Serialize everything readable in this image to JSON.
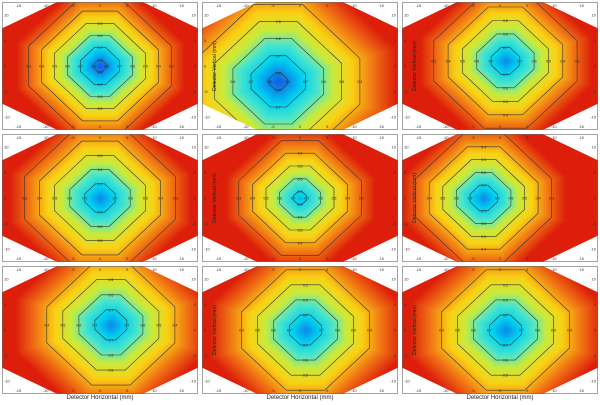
{
  "common": {
    "xlabel": "Detector Horizontal (mm)",
    "ylabel": "Detector Vertical (mm)",
    "xticks": [
      -15,
      -10,
      -5,
      0,
      5,
      10,
      15
    ],
    "yticks": [
      -10,
      -5,
      0,
      5,
      10
    ],
    "xlim": [
      -18,
      18
    ],
    "ylim": [
      -12.5,
      12.5
    ]
  },
  "chart_data": [
    {
      "type": "heatmap",
      "subtype": "contour",
      "panel": "r1c1",
      "center": [
        0,
        0
      ],
      "vmax": 0.85,
      "falloff": 0.042,
      "levels": [
        0.3,
        0.4,
        0.5,
        0.6,
        0.7,
        0.8
      ],
      "xlabel": "",
      "ylabel": ""
    },
    {
      "type": "heatmap",
      "subtype": "contour",
      "panel": "r1c2",
      "center": [
        -4,
        -3
      ],
      "vmax": 0.85,
      "falloff": 0.03,
      "levels": [
        0.4,
        0.5,
        0.6,
        0.7,
        0.8
      ],
      "xlabel": "",
      "ylabel": "Detector Vertical (mm)"
    },
    {
      "type": "heatmap",
      "subtype": "contour",
      "panel": "r1c3",
      "center": [
        1,
        1
      ],
      "vmax": 0.8,
      "falloff": 0.038,
      "levels": [
        0.3,
        0.4,
        0.5,
        0.6,
        0.7
      ],
      "xlabel": "",
      "ylabel": "Detector Vertical (mm)"
    },
    {
      "type": "heatmap",
      "subtype": "contour",
      "panel": "r2c1",
      "center": [
        0,
        0
      ],
      "vmax": 0.8,
      "falloff": 0.036,
      "levels": [
        0.3,
        0.4,
        0.5,
        0.6,
        0.7
      ],
      "xlabel": "",
      "ylabel": ""
    },
    {
      "type": "heatmap",
      "subtype": "contour",
      "panel": "r2c2",
      "center": [
        0,
        0
      ],
      "vmax": 0.75,
      "falloff": 0.04,
      "levels": [
        0.3,
        0.4,
        0.5,
        0.6,
        0.7
      ],
      "xlabel": "",
      "ylabel": "Detector Vertical (mm)"
    },
    {
      "type": "heatmap",
      "subtype": "contour",
      "panel": "r2c3",
      "center": [
        -3,
        0
      ],
      "vmax": 0.8,
      "falloff": 0.04,
      "levels": [
        0.3,
        0.4,
        0.5,
        0.6,
        0.7
      ],
      "xlabel": "",
      "ylabel": "Detector Vertical (mm)"
    },
    {
      "type": "heatmap",
      "subtype": "contour",
      "panel": "r3c1",
      "center": [
        2,
        1
      ],
      "vmax": 0.8,
      "falloff": 0.034,
      "levels": [
        0.4,
        0.5,
        0.6,
        0.7
      ],
      "xlabel": "Detector Horizontal (mm)",
      "ylabel": ""
    },
    {
      "type": "heatmap",
      "subtype": "contour",
      "panel": "r3c2",
      "center": [
        1,
        0
      ],
      "vmax": 0.8,
      "falloff": 0.034,
      "levels": [
        0.4,
        0.5,
        0.6,
        0.7
      ],
      "xlabel": "Detector Horizontal (mm)",
      "ylabel": "Detector Vertical (mm)"
    },
    {
      "type": "heatmap",
      "subtype": "contour",
      "panel": "r3c3",
      "center": [
        1,
        0
      ],
      "vmax": 0.8,
      "falloff": 0.034,
      "levels": [
        0.4,
        0.5,
        0.6,
        0.7
      ],
      "xlabel": "Detector Horizontal (mm)",
      "ylabel": "Detector Vertical (mm)"
    }
  ]
}
